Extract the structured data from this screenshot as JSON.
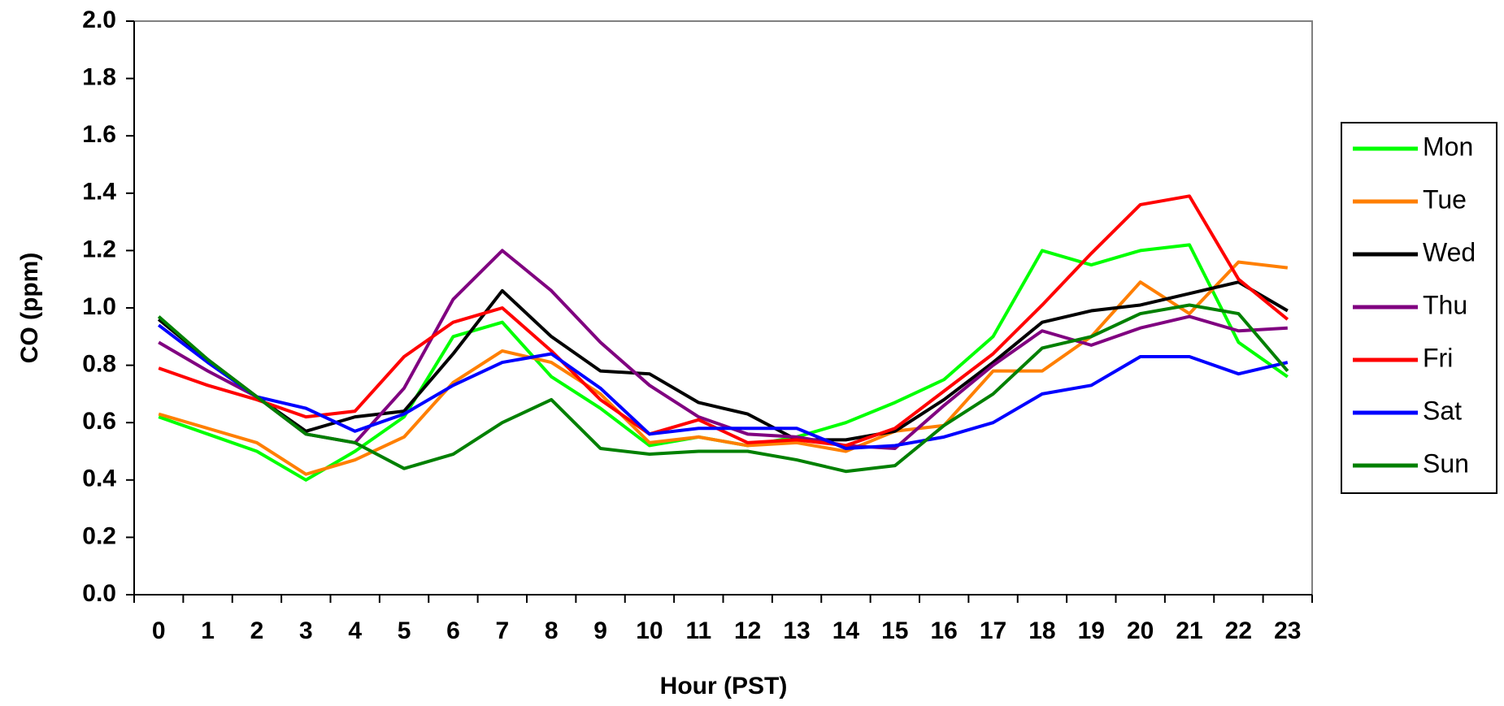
{
  "chart_data": {
    "type": "line",
    "x_label": "Hour (PST)",
    "y_label": "CO (ppm)",
    "categories": [
      "0",
      "1",
      "2",
      "3",
      "4",
      "5",
      "6",
      "7",
      "8",
      "9",
      "10",
      "11",
      "12",
      "13",
      "14",
      "15",
      "16",
      "17",
      "18",
      "19",
      "20",
      "21",
      "22",
      "23"
    ],
    "ylim": [
      0,
      2.0
    ],
    "yticks": [
      {
        "value": 0,
        "label": "0.0"
      },
      0.2,
      0.4,
      0.6,
      0.8,
      {
        "value": 1,
        "label": "1.0"
      },
      1.2,
      1.4,
      1.6,
      1.8,
      {
        "value": 2,
        "label": "2.0"
      }
    ],
    "grid": false,
    "legend": "right",
    "series": [
      {
        "name": "Mon",
        "color": "#00ff00",
        "values": [
          0.62,
          0.56,
          0.5,
          0.4,
          0.5,
          0.62,
          0.9,
          0.95,
          0.76,
          0.65,
          0.52,
          0.55,
          0.52,
          0.55,
          0.6,
          0.67,
          0.75,
          0.9,
          1.2,
          1.15,
          1.2,
          1.22,
          0.88,
          0.76
        ]
      },
      {
        "name": "Tue",
        "color": "#ff7f00",
        "values": [
          0.63,
          0.58,
          0.53,
          0.42,
          0.47,
          0.55,
          0.74,
          0.85,
          0.81,
          0.7,
          0.53,
          0.55,
          0.52,
          0.53,
          0.5,
          0.57,
          0.59,
          0.78,
          0.78,
          0.9,
          1.09,
          0.98,
          1.16,
          1.14
        ]
      },
      {
        "name": "Wed",
        "color": "#000000",
        "values": [
          0.96,
          0.82,
          0.69,
          0.57,
          0.62,
          0.64,
          0.84,
          1.06,
          0.9,
          0.78,
          0.77,
          0.67,
          0.63,
          0.54,
          0.54,
          0.57,
          0.68,
          0.81,
          0.95,
          0.99,
          1.01,
          1.05,
          1.09,
          0.99
        ]
      },
      {
        "name": "Thu",
        "color": "#800080",
        "values": [
          0.88,
          0.78,
          0.69,
          0.56,
          0.53,
          0.72,
          1.03,
          1.2,
          1.06,
          0.88,
          0.73,
          0.62,
          0.56,
          0.55,
          0.52,
          0.51,
          0.66,
          0.8,
          0.92,
          0.87,
          0.93,
          0.97,
          0.92,
          0.93
        ]
      },
      {
        "name": "Fri",
        "color": "#ff0000",
        "values": [
          0.79,
          0.73,
          0.68,
          0.62,
          0.64,
          0.83,
          0.95,
          1.0,
          0.85,
          0.68,
          0.56,
          0.61,
          0.53,
          0.54,
          0.52,
          0.58,
          0.71,
          0.84,
          1.01,
          1.19,
          1.36,
          1.39,
          1.1,
          0.96
        ]
      },
      {
        "name": "Sat",
        "color": "#0000ff",
        "values": [
          0.94,
          0.81,
          0.69,
          0.65,
          0.57,
          0.63,
          0.73,
          0.81,
          0.84,
          0.72,
          0.56,
          0.58,
          0.58,
          0.58,
          0.51,
          0.52,
          0.55,
          0.6,
          0.7,
          0.73,
          0.83,
          0.83,
          0.77,
          0.81
        ]
      },
      {
        "name": "Sun",
        "color": "#008000",
        "values": [
          0.97,
          0.82,
          0.69,
          0.56,
          0.53,
          0.44,
          0.49,
          0.6,
          0.68,
          0.51,
          0.49,
          0.5,
          0.5,
          0.47,
          0.43,
          0.45,
          0.59,
          0.7,
          0.86,
          0.9,
          0.98,
          1.01,
          0.98,
          0.78
        ]
      }
    ]
  }
}
